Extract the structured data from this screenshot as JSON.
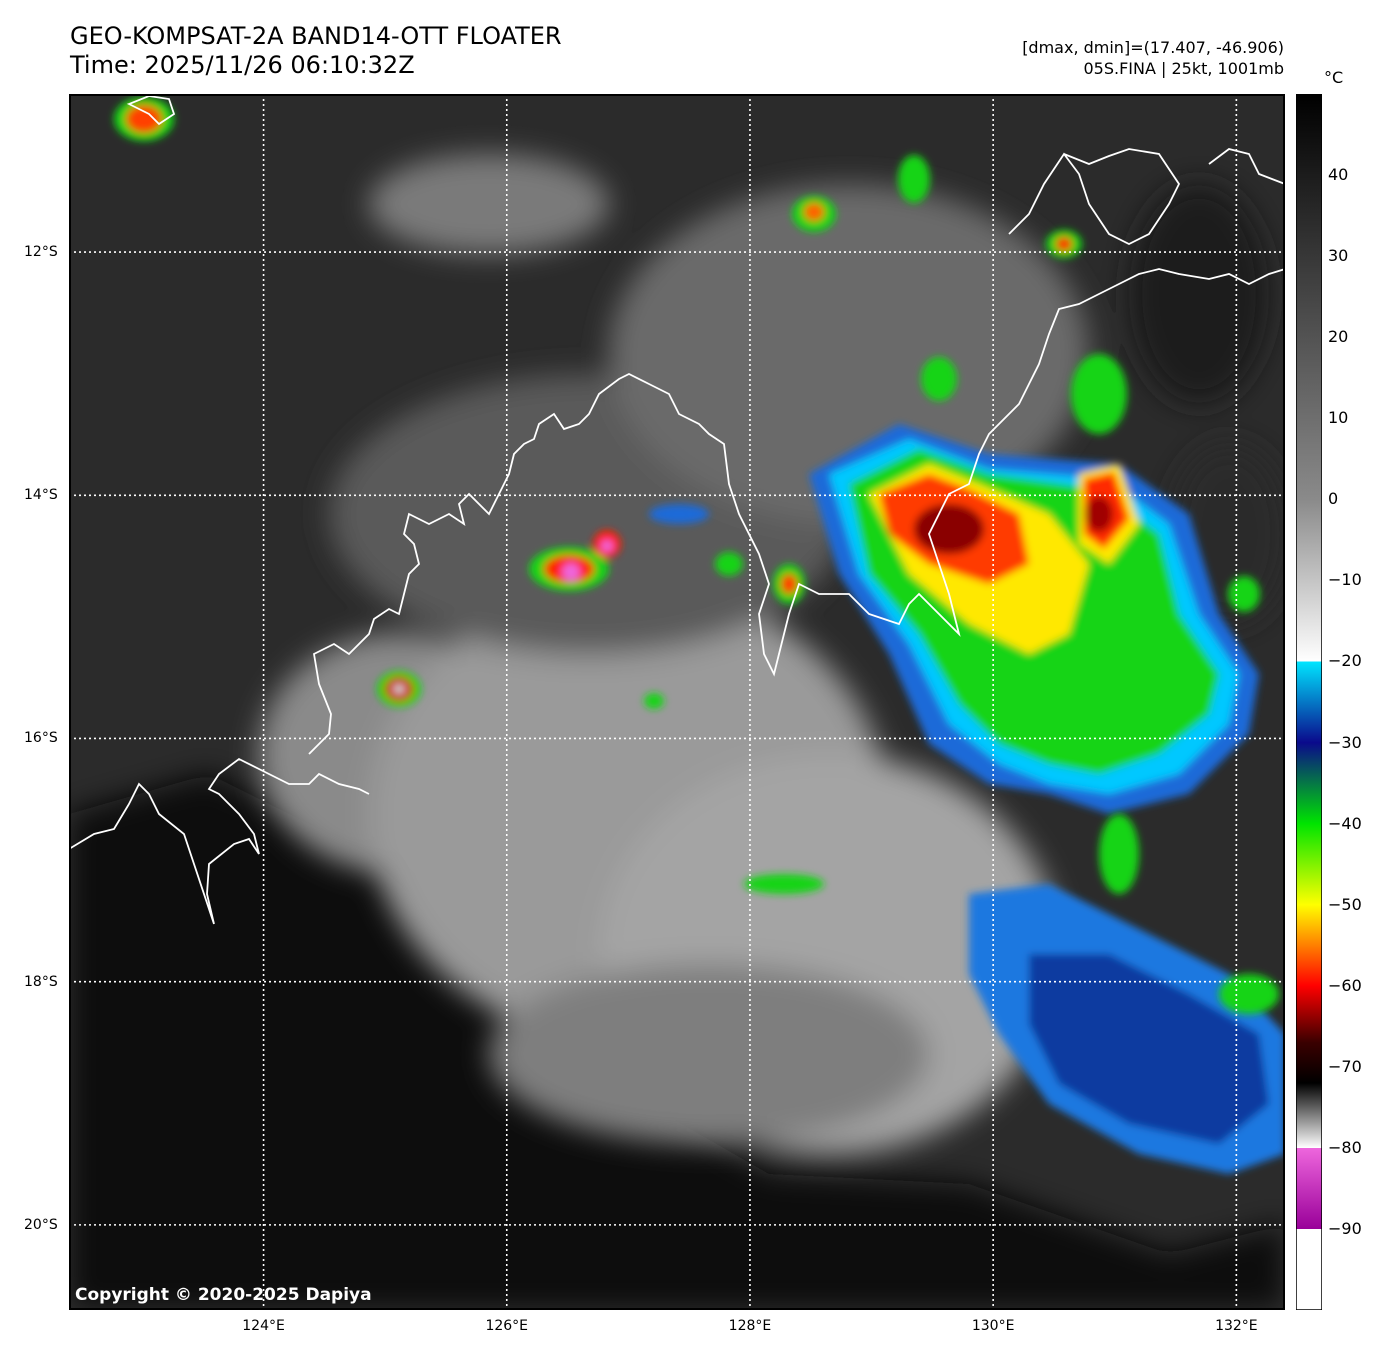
{
  "title_line1": "GEO-KOMPSAT-2A BAND14-OTT FLOATER",
  "title_line2": "Time: 2025/11/26 06:10:32Z",
  "info_line1": "[dmax, dmin]=(17.407, -46.906)",
  "info_line2": "05S.FINA | 25kt, 1001mb",
  "colorbar": {
    "unit": "°C",
    "ticks": [
      "40",
      "30",
      "20",
      "10",
      "0",
      "−10",
      "−20",
      "−30",
      "−40",
      "−50",
      "−60",
      "−70",
      "−80",
      "−90"
    ],
    "tick_values": [
      40,
      30,
      20,
      10,
      0,
      -10,
      -20,
      -30,
      -40,
      -50,
      -60,
      -70,
      -80,
      -90
    ],
    "range": [
      -100,
      50
    ],
    "stops": [
      {
        "value": 50,
        "color": "#000000"
      },
      {
        "value": 0,
        "color": "#8a8a8a"
      },
      {
        "value": -20,
        "color": "#ffffff"
      },
      {
        "value": -20.01,
        "color": "#00e5ff"
      },
      {
        "value": -30,
        "color": "#0a0a8c"
      },
      {
        "value": -40,
        "color": "#00e400"
      },
      {
        "value": -50,
        "color": "#ffff00"
      },
      {
        "value": -60,
        "color": "#ff0000"
      },
      {
        "value": -67,
        "color": "#3a0000"
      },
      {
        "value": -72,
        "color": "#000000"
      },
      {
        "value": -80,
        "color": "#ffffff"
      },
      {
        "value": -80.01,
        "color": "#ee66dd"
      },
      {
        "value": -90,
        "color": "#990099"
      },
      {
        "value": -90.01,
        "color": "#ffffff"
      },
      {
        "value": -100,
        "color": "#ffffff"
      }
    ]
  },
  "map": {
    "lon_range": [
      122.4,
      132.4
    ],
    "lat_range": [
      -20.7,
      -10.7
    ],
    "lat_labels": [
      "12°S",
      "14°S",
      "16°S",
      "18°S",
      "20°S"
    ],
    "lat_values": [
      -12,
      -14,
      -16,
      -18,
      -20
    ],
    "lon_labels": [
      "124°E",
      "126°E",
      "128°E",
      "130°E",
      "132°E"
    ],
    "lon_values": [
      124,
      126,
      128,
      130,
      132
    ],
    "copyright": "Copyright © 2020-2025 Dapiya"
  }
}
